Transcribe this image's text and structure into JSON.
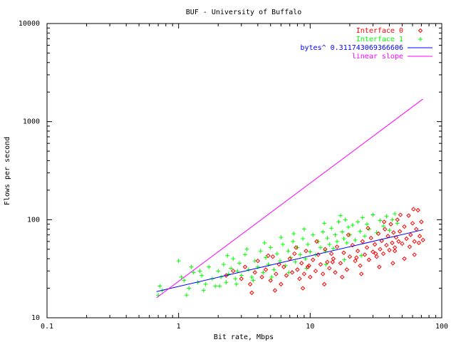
{
  "chart_data": {
    "type": "scatter",
    "title": "BUF - University of Buffalo",
    "xlabel": "Bit rate, Mbps",
    "ylabel": "Flows per second",
    "xscale": "log",
    "yscale": "log",
    "xlim": [
      0.1,
      100
    ],
    "ylim": [
      10,
      10000
    ],
    "xticks": [
      {
        "value": 0.1,
        "label": "0.1"
      },
      {
        "value": 1,
        "label": "1"
      },
      {
        "value": 10,
        "label": "10"
      },
      {
        "value": 100,
        "label": "100"
      }
    ],
    "yticks": [
      {
        "value": 10,
        "label": "10"
      },
      {
        "value": 100,
        "label": "100"
      },
      {
        "value": 1000,
        "label": "1000"
      },
      {
        "value": 10000,
        "label": "10000"
      }
    ],
    "grid": false,
    "legend_position": "top-right",
    "series": [
      {
        "name": "Interface 0",
        "marker": "diamond",
        "color": "#ff0000",
        "points": [
          [
            2.3,
            27
          ],
          [
            2.6,
            30
          ],
          [
            3.0,
            25
          ],
          [
            3.2,
            33
          ],
          [
            3.5,
            22
          ],
          [
            3.8,
            29
          ],
          [
            4.0,
            38
          ],
          [
            4.3,
            26
          ],
          [
            4.6,
            31
          ],
          [
            5.0,
            24
          ],
          [
            5.2,
            42
          ],
          [
            5.5,
            28
          ],
          [
            5.8,
            35
          ],
          [
            6.0,
            22
          ],
          [
            6.3,
            33
          ],
          [
            6.6,
            27
          ],
          [
            7.0,
            40
          ],
          [
            7.3,
            29
          ],
          [
            7.6,
            45
          ],
          [
            8.0,
            31
          ],
          [
            8.3,
            25
          ],
          [
            8.6,
            36
          ],
          [
            9.0,
            28
          ],
          [
            9.3,
            48
          ],
          [
            9.6,
            33
          ],
          [
            10,
            26
          ],
          [
            10.5,
            39
          ],
          [
            11,
            30
          ],
          [
            11.5,
            44
          ],
          [
            12,
            35
          ],
          [
            12.5,
            28
          ],
          [
            13,
            50
          ],
          [
            13.5,
            37
          ],
          [
            14,
            32
          ],
          [
            14.5,
            45
          ],
          [
            15,
            40
          ],
          [
            15.5,
            29
          ],
          [
            16,
            53
          ],
          [
            17,
            36
          ],
          [
            18,
            46
          ],
          [
            19,
            31
          ],
          [
            20,
            42
          ],
          [
            21,
            55
          ],
          [
            22,
            38
          ],
          [
            23,
            48
          ],
          [
            24,
            34
          ],
          [
            25,
            60
          ],
          [
            26,
            44
          ],
          [
            27,
            52
          ],
          [
            28,
            39
          ],
          [
            29,
            65
          ],
          [
            30,
            47
          ],
          [
            31,
            56
          ],
          [
            32,
            42
          ],
          [
            33,
            72
          ],
          [
            34,
            50
          ],
          [
            35,
            61
          ],
          [
            36,
            45
          ],
          [
            37,
            80
          ],
          [
            38,
            55
          ],
          [
            39,
            68
          ],
          [
            40,
            49
          ],
          [
            41,
            90
          ],
          [
            42,
            58
          ],
          [
            43,
            74
          ],
          [
            44,
            52
          ],
          [
            45,
            66
          ],
          [
            46,
            100
          ],
          [
            47,
            60
          ],
          [
            48,
            76
          ],
          [
            50,
            57
          ],
          [
            52,
            85
          ],
          [
            54,
            64
          ],
          [
            56,
            110
          ],
          [
            58,
            70
          ],
          [
            60,
            92
          ],
          [
            62,
            60
          ],
          [
            64,
            80
          ],
          [
            66,
            125
          ],
          [
            68,
            68
          ],
          [
            70,
            95
          ],
          [
            72,
            62
          ],
          [
            3.6,
            18
          ],
          [
            5.4,
            19
          ],
          [
            8.8,
            20
          ],
          [
            12.8,
            22
          ],
          [
            17.5,
            26
          ],
          [
            24.5,
            28
          ],
          [
            33.5,
            33
          ],
          [
            42.5,
            36
          ],
          [
            52,
            40
          ],
          [
            62,
            44
          ],
          [
            4.8,
            43
          ],
          [
            7.8,
            52
          ],
          [
            11.2,
            60
          ],
          [
            19.5,
            70
          ],
          [
            27.5,
            82
          ],
          [
            36.5,
            95
          ],
          [
            48.5,
            112
          ],
          [
            61,
            128
          ],
          [
            9.8,
            34
          ],
          [
            14.8,
            37
          ],
          [
            22.5,
            41
          ],
          [
            31.5,
            45
          ],
          [
            44,
            48
          ],
          [
            57,
            53
          ],
          [
            67,
            58
          ]
        ]
      },
      {
        "name": "Interface 1",
        "marker": "plus",
        "color": "#00ff00",
        "points": [
          [
            0.7,
            17
          ],
          [
            0.72,
            21
          ],
          [
            0.75,
            19
          ],
          [
            1.0,
            38
          ],
          [
            1.1,
            24
          ],
          [
            1.2,
            20
          ],
          [
            1.3,
            29
          ],
          [
            1.4,
            23
          ],
          [
            1.5,
            27
          ],
          [
            1.6,
            22
          ],
          [
            1.7,
            33
          ],
          [
            1.8,
            25
          ],
          [
            1.9,
            21
          ],
          [
            2.0,
            30
          ],
          [
            2.1,
            26
          ],
          [
            2.2,
            35
          ],
          [
            2.3,
            23
          ],
          [
            2.4,
            28
          ],
          [
            2.5,
            32
          ],
          [
            2.6,
            40
          ],
          [
            2.7,
            25
          ],
          [
            2.8,
            30
          ],
          [
            2.9,
            36
          ],
          [
            3.0,
            27
          ],
          [
            3.2,
            44
          ],
          [
            3.4,
            31
          ],
          [
            3.6,
            26
          ],
          [
            3.8,
            38
          ],
          [
            4.0,
            33
          ],
          [
            4.2,
            48
          ],
          [
            4.4,
            29
          ],
          [
            4.6,
            41
          ],
          [
            4.8,
            35
          ],
          [
            5.0,
            52
          ],
          [
            5.3,
            31
          ],
          [
            5.6,
            45
          ],
          [
            5.9,
            38
          ],
          [
            6.2,
            56
          ],
          [
            6.5,
            34
          ],
          [
            6.8,
            48
          ],
          [
            7.1,
            41
          ],
          [
            7.4,
            60
          ],
          [
            7.7,
            37
          ],
          [
            8.0,
            52
          ],
          [
            8.4,
            44
          ],
          [
            8.8,
            64
          ],
          [
            9.2,
            40
          ],
          [
            9.6,
            56
          ],
          [
            10,
            47
          ],
          [
            10.5,
            70
          ],
          [
            11,
            44
          ],
          [
            11.5,
            60
          ],
          [
            12,
            52
          ],
          [
            12.5,
            75
          ],
          [
            13,
            48
          ],
          [
            13.5,
            65
          ],
          [
            14,
            56
          ],
          [
            14.5,
            82
          ],
          [
            15,
            51
          ],
          [
            15.5,
            70
          ],
          [
            16,
            60
          ],
          [
            16.5,
            95
          ],
          [
            17,
            110
          ],
          [
            17.5,
            75
          ],
          [
            18,
            64
          ],
          [
            18.5,
            100
          ],
          [
            19,
            58
          ],
          [
            19.5,
            84
          ],
          [
            20,
            70
          ],
          [
            21,
            88
          ],
          [
            22,
            62
          ],
          [
            23,
            95
          ],
          [
            24,
            76
          ],
          [
            25,
            105
          ],
          [
            26,
            68
          ],
          [
            27,
            90
          ],
          [
            28,
            80
          ],
          [
            30,
            112
          ],
          [
            32,
            74
          ],
          [
            34,
            98
          ],
          [
            36,
            86
          ],
          [
            38,
            108
          ],
          [
            40,
            78
          ],
          [
            42,
            100
          ],
          [
            44,
            115
          ],
          [
            46,
            92
          ],
          [
            1.05,
            26
          ],
          [
            1.25,
            33
          ],
          [
            1.45,
            30
          ],
          [
            2.35,
            43
          ],
          [
            3.3,
            50
          ],
          [
            4.5,
            58
          ],
          [
            6.0,
            66
          ],
          [
            7.5,
            72
          ],
          [
            9.0,
            80
          ],
          [
            12.8,
            92
          ],
          [
            1.15,
            17
          ],
          [
            1.55,
            19
          ],
          [
            2.05,
            21
          ],
          [
            2.75,
            22
          ],
          [
            3.7,
            24
          ],
          [
            5.1,
            26
          ],
          [
            6.9,
            29
          ],
          [
            9.4,
            32
          ],
          [
            13.2,
            35
          ],
          [
            18.2,
            39
          ],
          [
            24.5,
            43
          ]
        ]
      }
    ],
    "lines": [
      {
        "name": "bytes^ 0.311743069366606",
        "color": "#0000ff",
        "points": [
          [
            0.68,
            18.5
          ],
          [
            72,
            79
          ]
        ]
      },
      {
        "name": "linear slope",
        "color": "#ff00ff",
        "points": [
          [
            0.68,
            16
          ],
          [
            72,
            1700
          ]
        ]
      }
    ]
  }
}
